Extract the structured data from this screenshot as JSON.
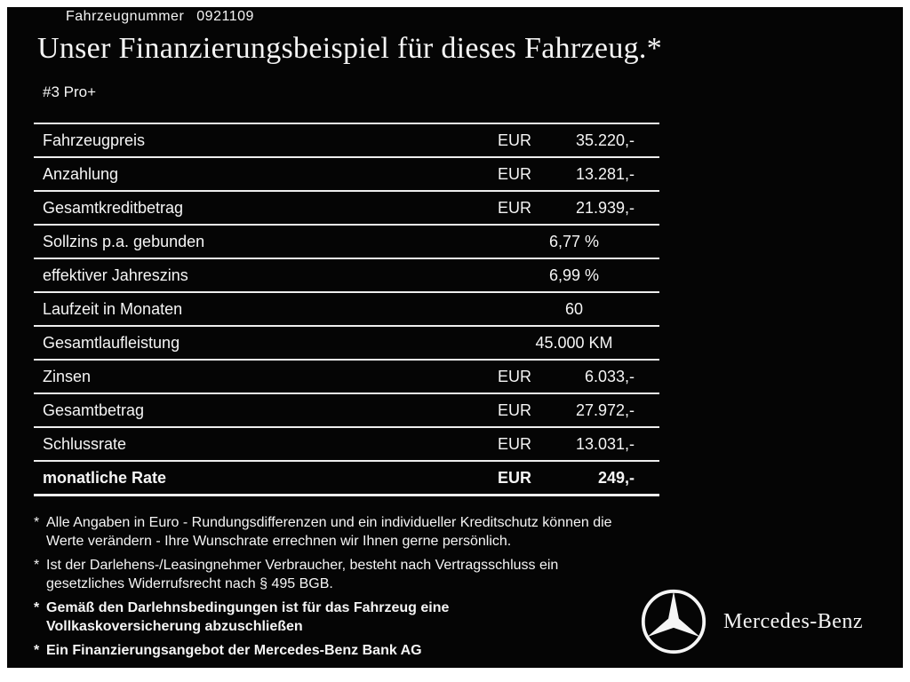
{
  "header": {
    "vehicle_number_label": "Fahrzeugnummer",
    "vehicle_number": "0921109",
    "title": "Unser Finanzierungsbeispiel für dieses Fahrzeug.*",
    "model": "#3 Pro+"
  },
  "table": {
    "rows": [
      {
        "label": "Fahrzeugpreis",
        "currency": "EUR",
        "value": "35.220,-",
        "bold": false
      },
      {
        "label": "Anzahlung",
        "currency": "EUR",
        "value": "13.281,-",
        "bold": false
      },
      {
        "label": "Gesamtkreditbetrag",
        "currency": "EUR",
        "value": "21.939,-",
        "bold": false
      },
      {
        "label": "Sollzins p.a. gebunden",
        "currency": "",
        "value": "6,77 %",
        "bold": false
      },
      {
        "label": "effektiver Jahreszins",
        "currency": "",
        "value": "6,99 %",
        "bold": false
      },
      {
        "label": "Laufzeit in Monaten",
        "currency": "",
        "value": "60",
        "bold": false
      },
      {
        "label": "Gesamtlaufleistung",
        "currency": "",
        "value": "45.000 KM",
        "bold": false
      },
      {
        "label": "Zinsen",
        "currency": "EUR",
        "value": "6.033,-",
        "bold": false
      },
      {
        "label": "Gesamtbetrag",
        "currency": "EUR",
        "value": "27.972,-",
        "bold": false
      },
      {
        "label": "Schlussrate",
        "currency": "EUR",
        "value": "13.031,-",
        "bold": false
      },
      {
        "label": "monatliche Rate",
        "currency": "EUR",
        "value": "249,-",
        "bold": true
      }
    ]
  },
  "footnotes": [
    {
      "marker": "*",
      "bold": false,
      "text": "Alle Angaben in Euro - Rundungsdifferenzen und ein individueller Kreditschutz können die\nWerte verändern - Ihre Wunschrate errechnen wir Ihnen gerne persönlich."
    },
    {
      "marker": "*",
      "bold": false,
      "text": "Ist der Darlehens-/Leasingnehmer Verbraucher, besteht nach Vertragsschluss ein\ngesetzliches Widerrufsrecht nach § 495 BGB."
    },
    {
      "marker": "*",
      "bold": true,
      "text": "Gemäß den Darlehnsbedingungen ist für das Fahrzeug eine\nVollkaskoversicherung abzuschließen"
    },
    {
      "marker": "*",
      "bold": true,
      "text": "Ein Finanzierungsangebot der Mercedes-Benz Bank AG"
    }
  ],
  "brand": {
    "star_icon": "mercedes-star-icon",
    "wordmark": "Mercedes-Benz"
  },
  "colors": {
    "background": "#050505",
    "text": "#f5f5f5",
    "line": "#eeeeee",
    "frame": "#ffffff"
  }
}
